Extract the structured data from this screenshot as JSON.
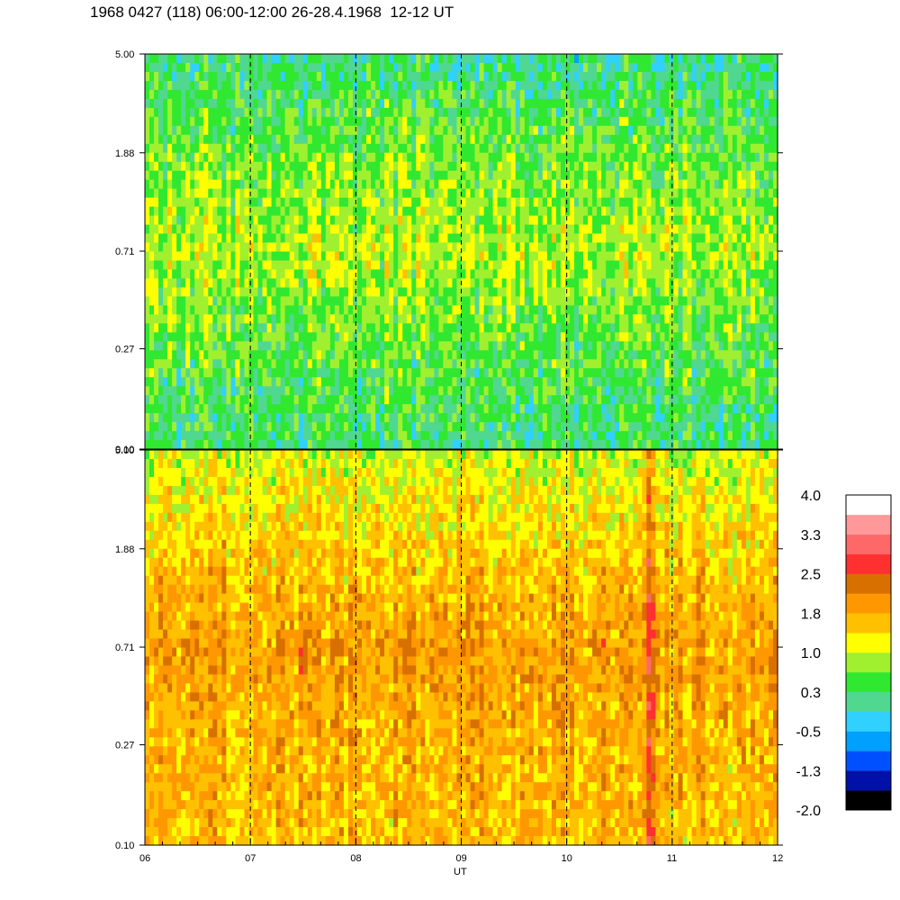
{
  "chart_data": {
    "type": "heatmap",
    "title": "1968 0427 (118) 06:00-12:00 26-28.4.1968  12-12 UT",
    "xlabel": "UT",
    "xlim": [
      6,
      12
    ],
    "x_ticks": [
      "06",
      "07",
      "08",
      "09",
      "10",
      "11",
      "12"
    ],
    "y_scale": "log",
    "ylim": [
      0.1,
      5.0
    ],
    "y_ticks": [
      "5.00",
      "1.88",
      "0.71",
      "0.27",
      "0.10"
    ],
    "panels": [
      {
        "name": "upper",
        "description_level": "mostly 0.3 to 1.0 (green/yellow), with low values near top",
        "profile_by_y": [
          {
            "y": 5.0,
            "value": 0.1
          },
          {
            "y": 1.88,
            "value": 0.6
          },
          {
            "y": 0.71,
            "value": 0.9
          },
          {
            "y": 0.27,
            "value": 0.5
          },
          {
            "y": 0.1,
            "value": 0.2
          }
        ]
      },
      {
        "name": "lower",
        "description_level": "mostly 1.0 to 2.5 (yellow/orange), peak near 10:48 UT",
        "profile_by_y": [
          {
            "y": 5.0,
            "value": 1.0
          },
          {
            "y": 1.88,
            "value": 1.5
          },
          {
            "y": 0.71,
            "value": 1.9
          },
          {
            "y": 0.27,
            "value": 1.7
          },
          {
            "y": 0.1,
            "value": 1.6
          }
        ]
      }
    ],
    "dashed_lines_x": [
      7,
      8,
      9,
      10,
      11
    ],
    "colorbar": {
      "labels": [
        "4.0",
        "3.3",
        "2.5",
        "1.8",
        "1.0",
        "0.3",
        "-0.5",
        "-1.3",
        "-2.0"
      ],
      "colors": [
        "#000000",
        "#0010a8",
        "#0050ff",
        "#00a0ff",
        "#30d0ff",
        "#50d890",
        "#30e830",
        "#a0f030",
        "#ffff00",
        "#ffc000",
        "#ff9800",
        "#d87000",
        "#ff3030",
        "#ff6868",
        "#ff9898",
        "#ffffff"
      ]
    }
  }
}
